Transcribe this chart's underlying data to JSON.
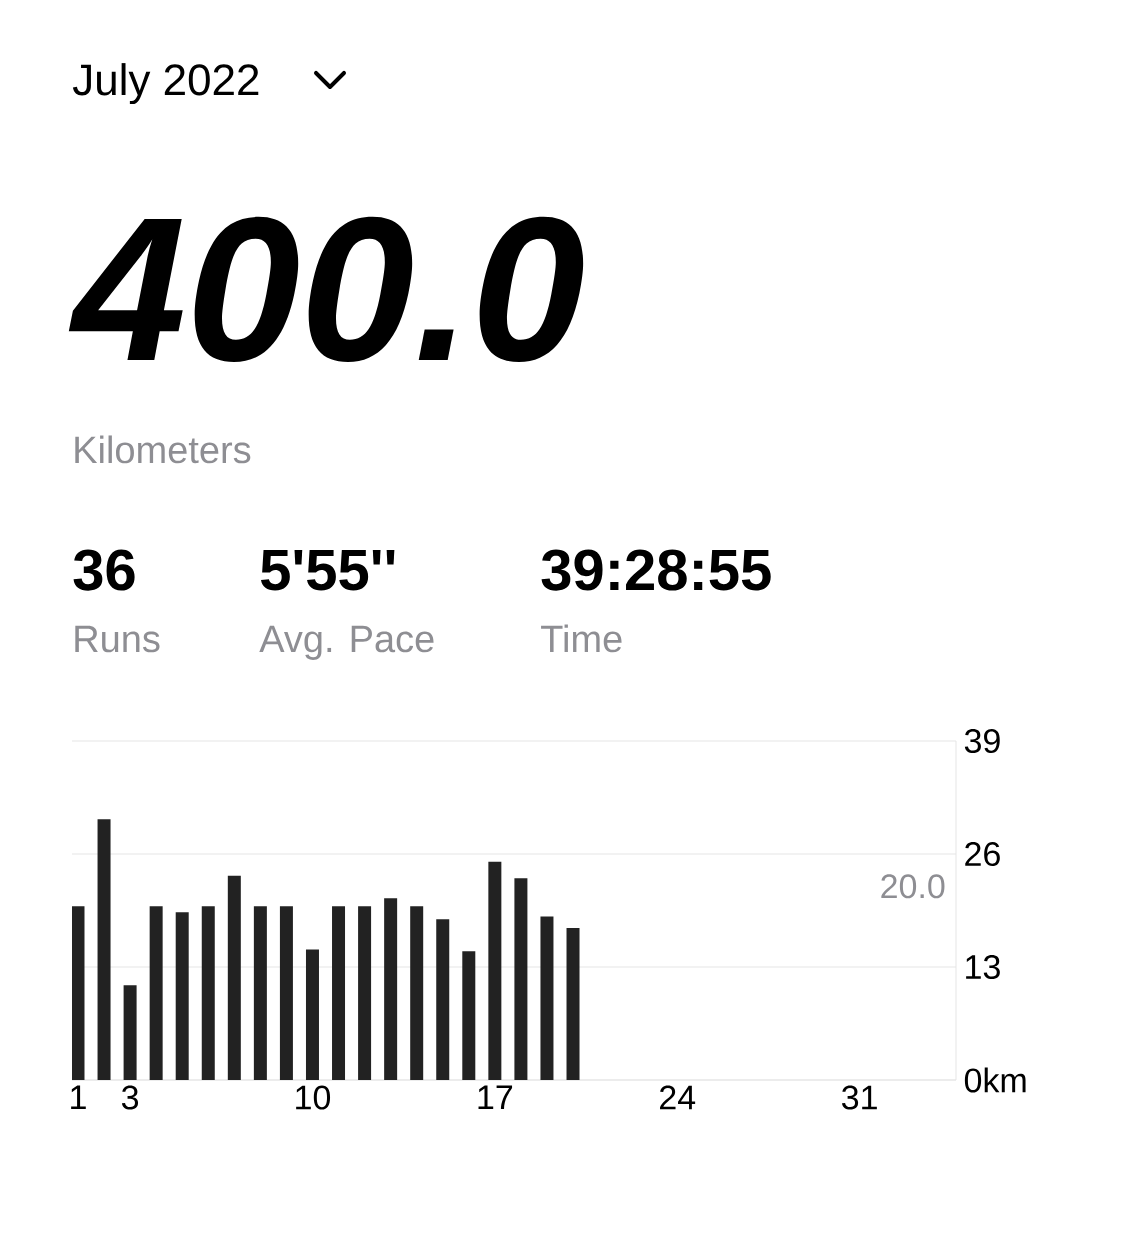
{
  "chart_data": {
    "type": "bar",
    "title": "July 2022",
    "annotations": [
      "400.0",
      "Kilometers",
      "36",
      "Runs",
      "5'55''",
      "Avg. Pace",
      "39:28:55",
      "Time",
      "20.0"
    ],
    "x": [
      1,
      2,
      3,
      4,
      5,
      6,
      7,
      8,
      9,
      10,
      11,
      12,
      13,
      14,
      15,
      16,
      17,
      18,
      19,
      20
    ],
    "values": [
      20.0,
      30.0,
      10.9,
      20.0,
      19.3,
      20.0,
      23.5,
      20.0,
      20.0,
      15.0,
      20.0,
      20.0,
      20.9,
      20.0,
      18.5,
      14.8,
      25.1,
      23.2,
      18.8,
      17.5
    ],
    "color": "#222222",
    "xlim": [
      0.77,
      34.7
    ],
    "xticks": [
      1,
      3,
      10,
      17,
      24,
      31
    ],
    "ylim": [
      0,
      39
    ],
    "yticks": [
      {
        "value": 0,
        "label": "0km"
      },
      13,
      26,
      39
    ],
    "grid": "y"
  }
}
